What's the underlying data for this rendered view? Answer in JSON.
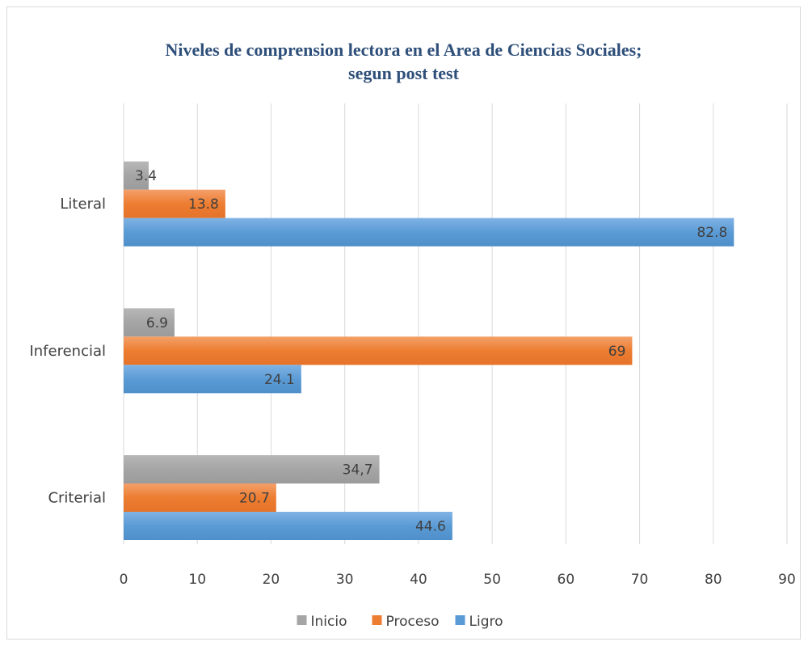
{
  "chart_data": {
    "type": "bar",
    "orientation": "horizontal",
    "title_line1": "Niveles de comprension lectora en el Area de Ciencias Sociales;",
    "title_line2": "segun post test",
    "categories": [
      "Literal",
      "Inferencial",
      "Criterial"
    ],
    "series": [
      {
        "name": "Inicio",
        "color": "#a5a5a5",
        "values": [
          3.4,
          6.9,
          34.7
        ],
        "labels": [
          "3.4",
          "6.9",
          "34,7"
        ]
      },
      {
        "name": "Proceso",
        "color": "#ed7d31",
        "values": [
          13.8,
          69,
          20.7
        ],
        "labels": [
          "13.8",
          "69",
          "20.7"
        ]
      },
      {
        "name": "Ligro",
        "color": "#5b9bd5",
        "values": [
          82.8,
          24.1,
          44.6
        ],
        "labels": [
          "82.8",
          "24.1",
          "44.6"
        ]
      }
    ],
    "xlim": [
      0,
      90
    ],
    "xticks": [
      0,
      10,
      20,
      30,
      40,
      50,
      60,
      70,
      80,
      90
    ],
    "grid": true,
    "legend_position": "bottom"
  }
}
